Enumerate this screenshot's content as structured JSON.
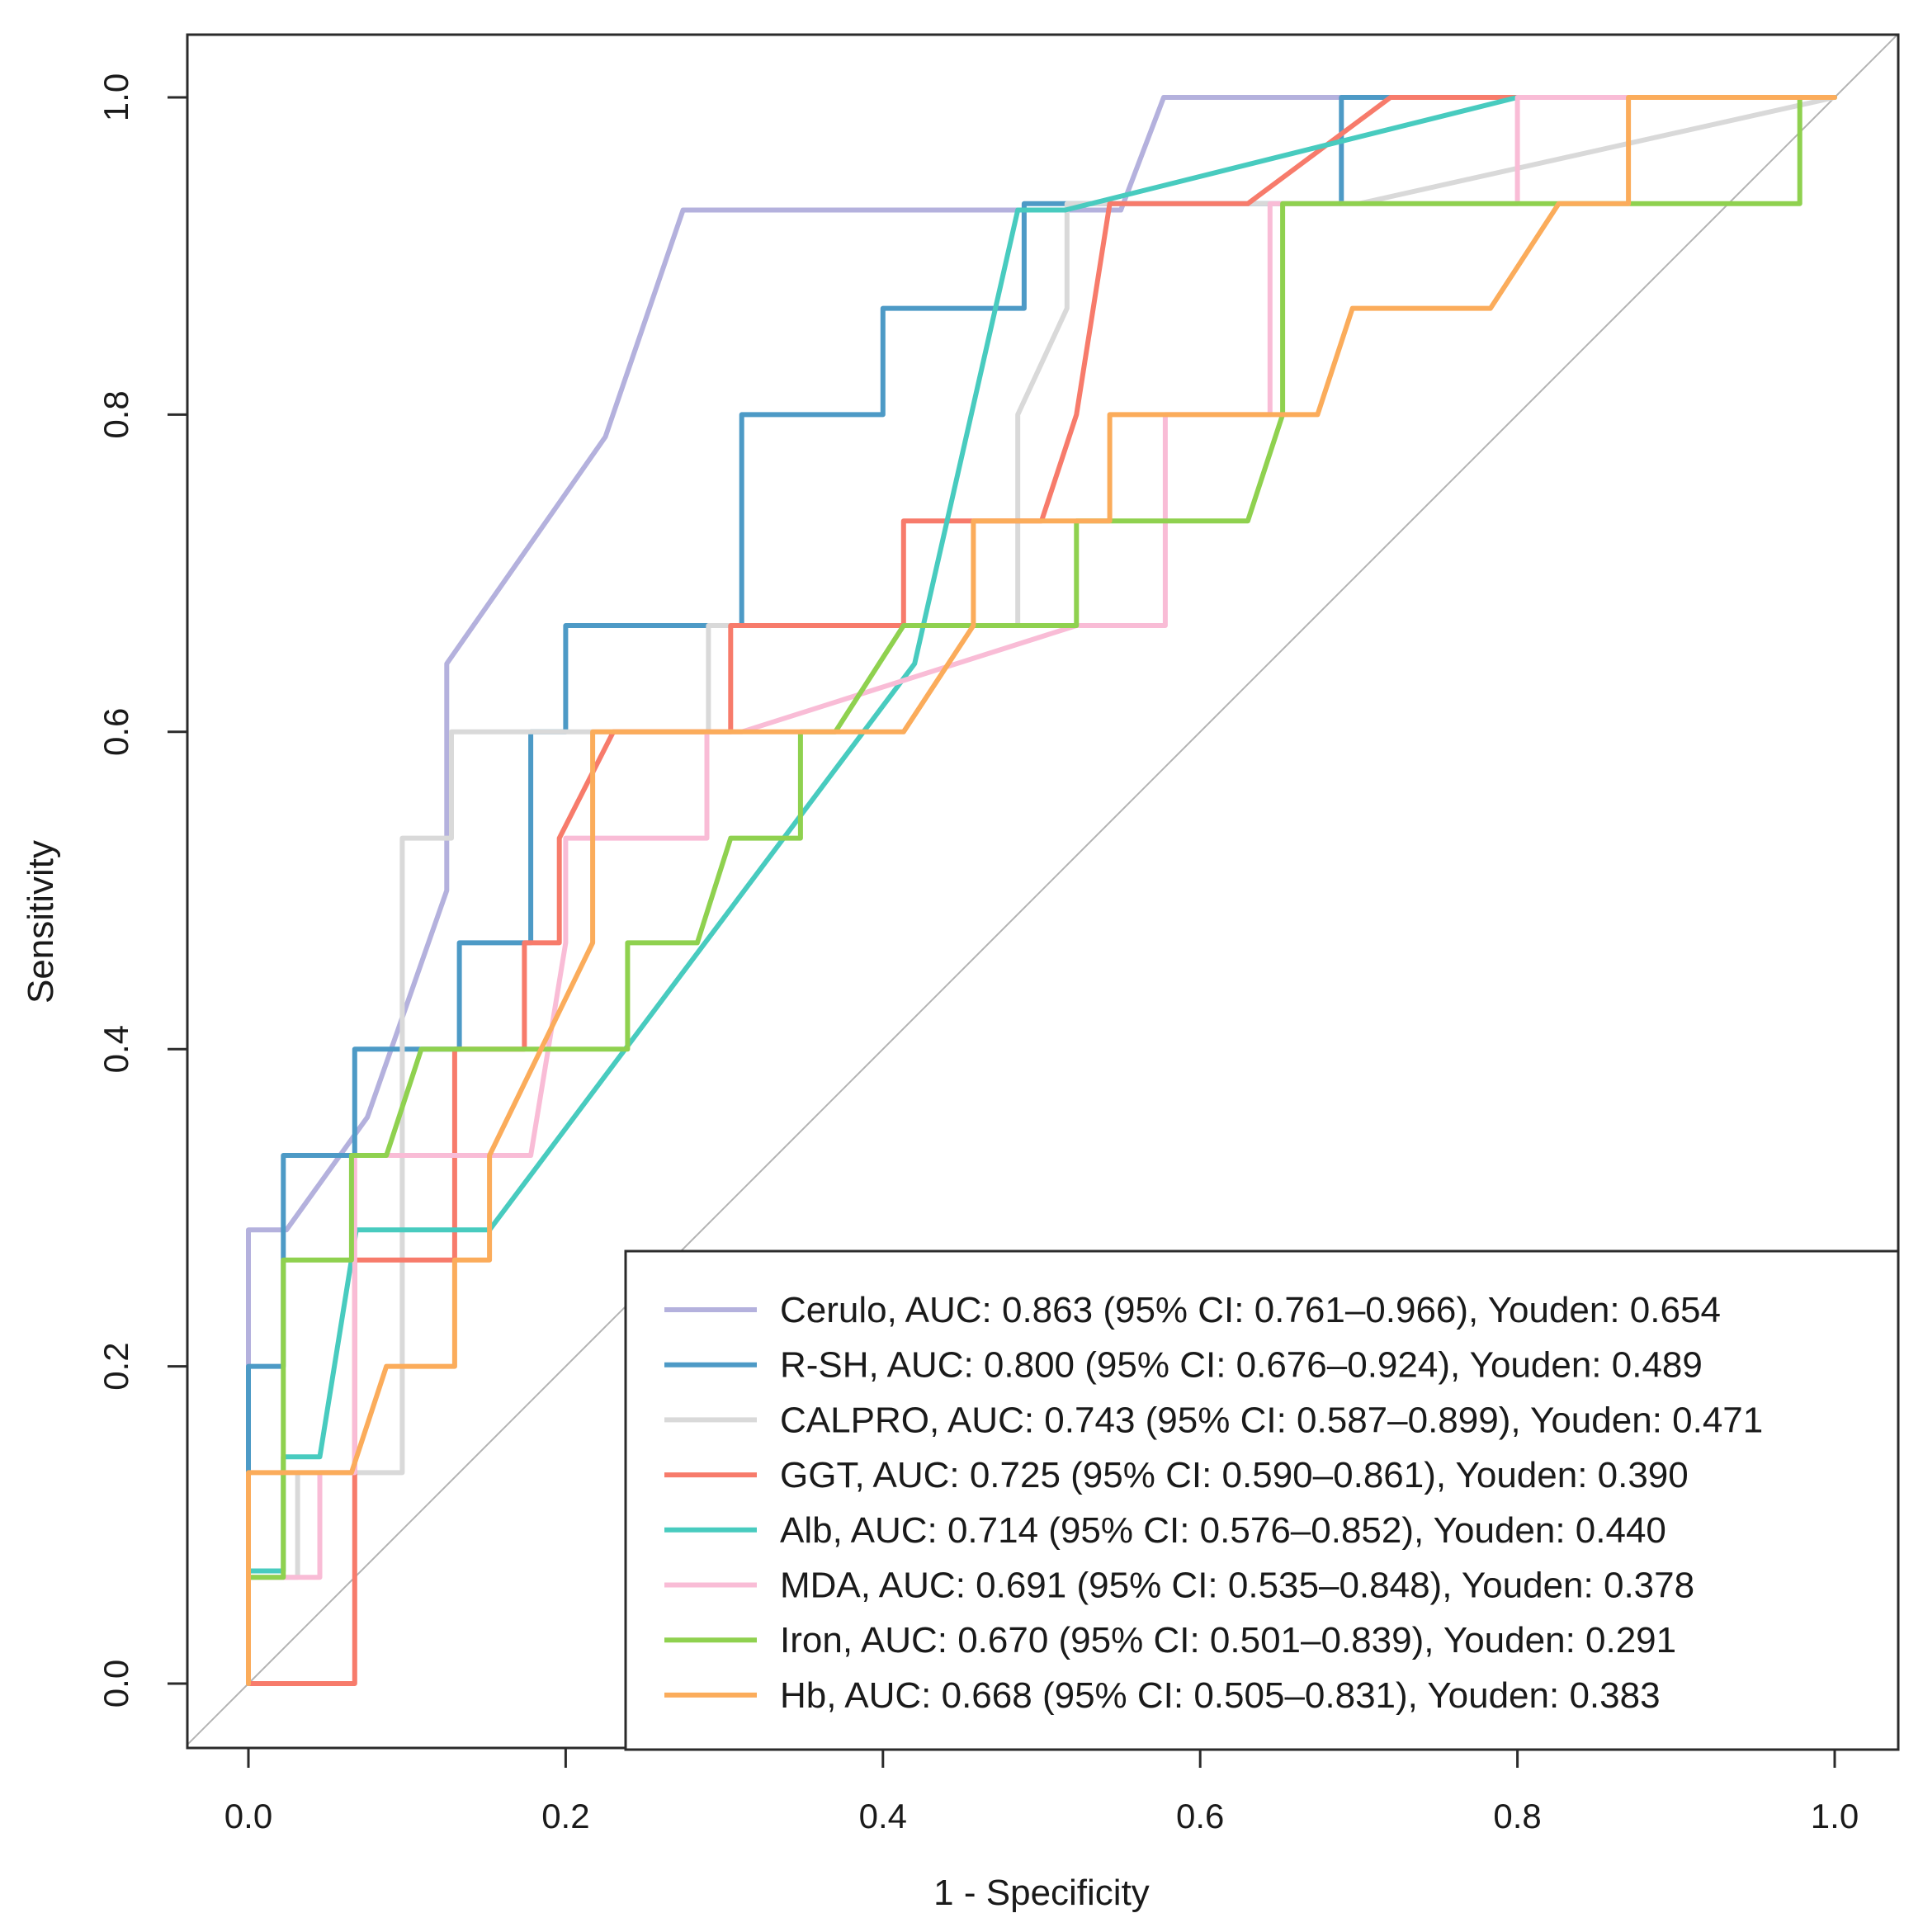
{
  "chart_data": {
    "type": "line",
    "title": "",
    "xlabel": "1 - Specificity",
    "ylabel": "Sensitivity",
    "xlim": [
      0.0,
      1.0
    ],
    "ylim": [
      0.0,
      1.0
    ],
    "grid": false,
    "diagonal_reference": true,
    "legend_position": "bottom-right",
    "xticks": [
      "0.0",
      "0.2",
      "0.4",
      "0.6",
      "0.8",
      "1.0"
    ],
    "yticks": [
      "0.0",
      "0.2",
      "0.4",
      "0.6",
      "0.8",
      "1.0"
    ],
    "series": [
      {
        "name": "Cerulo",
        "label": "Cerulo, AUC: 0.863 (95% CI: 0.761–0.966), Youden: 0.654",
        "auc": 0.863,
        "ci": [
          0.761,
          0.966
        ],
        "youden": 0.654,
        "color": "#b4b1dd",
        "x": [
          0,
          0,
          0.024,
          0.075,
          0.125,
          0.125,
          0.225,
          0.274,
          0.5,
          0.55,
          0.577,
          1
        ],
        "y": [
          0,
          0.286,
          0.286,
          0.357,
          0.5,
          0.643,
          0.786,
          0.929,
          0.929,
          0.929,
          1,
          1
        ]
      },
      {
        "name": "R-SH",
        "label": "R-SH, AUC: 0.800 (95% CI: 0.676–0.924), Youden: 0.489",
        "auc": 0.8,
        "ci": [
          0.676,
          0.924
        ],
        "youden": 0.489,
        "color": "#4d9ac6",
        "x": [
          0,
          0,
          0.022,
          0.022,
          0.067,
          0.067,
          0.1,
          0.133,
          0.133,
          0.178,
          0.178,
          0.2,
          0.2,
          0.311,
          0.311,
          0.4,
          0.4,
          0.489,
          0.489,
          0.689,
          0.689,
          0.8,
          1
        ],
        "y": [
          0,
          0.2,
          0.2,
          0.333,
          0.333,
          0.4,
          0.4,
          0.4,
          0.467,
          0.467,
          0.6,
          0.6,
          0.667,
          0.667,
          0.8,
          0.8,
          0.867,
          0.867,
          0.933,
          0.933,
          1,
          1,
          1
        ]
      },
      {
        "name": "CALPRO",
        "label": "CALPRO, AUC: 0.743 (95% CI: 0.587–0.899), Youden: 0.471",
        "auc": 0.743,
        "ci": [
          0.587,
          0.899
        ],
        "youden": 0.471,
        "color": "#d9d9d9",
        "x": [
          0,
          0,
          0.031,
          0.031,
          0.097,
          0.097,
          0.128,
          0.128,
          0.29,
          0.29,
          0.485,
          0.485,
          0.516,
          0.516,
          0.7,
          1
        ],
        "y": [
          0,
          0.067,
          0.067,
          0.133,
          0.133,
          0.533,
          0.533,
          0.6,
          0.6,
          0.667,
          0.667,
          0.8,
          0.867,
          0.933,
          0.933,
          1
        ]
      },
      {
        "name": "GGT",
        "label": "GGT, AUC: 0.725 (95% CI: 0.590–0.861), Youden: 0.390",
        "auc": 0.725,
        "ci": [
          0.59,
          0.861
        ],
        "youden": 0.39,
        "color": "#f77b6b",
        "x": [
          0,
          0.067,
          0.067,
          0.087,
          0.087,
          0.13,
          0.13,
          0.174,
          0.174,
          0.196,
          0.196,
          0.23,
          0.304,
          0.304,
          0.413,
          0.413,
          0.5,
          0.522,
          0.543,
          0.63,
          0.72,
          1
        ],
        "y": [
          0,
          0,
          0.267,
          0.267,
          0.267,
          0.267,
          0.4,
          0.4,
          0.467,
          0.467,
          0.533,
          0.6,
          0.6,
          0.667,
          0.667,
          0.733,
          0.733,
          0.8,
          0.933,
          0.933,
          1,
          1
        ]
      },
      {
        "name": "Alb",
        "label": "Alb, AUC: 0.714 (95% CI: 0.576–0.852), Youden: 0.440",
        "auc": 0.714,
        "ci": [
          0.576,
          0.852
        ],
        "youden": 0.44,
        "color": "#48cbbf",
        "x": [
          0,
          0,
          0.022,
          0.022,
          0.045,
          0.068,
          0.068,
          0.152,
          0.42,
          0.485,
          0.515,
          0.8,
          1
        ],
        "y": [
          0,
          0.071,
          0.071,
          0.143,
          0.143,
          0.286,
          0.286,
          0.286,
          0.643,
          0.929,
          0.929,
          1,
          1
        ]
      },
      {
        "name": "MDA",
        "label": "MDA, AUC: 0.691 (95% CI: 0.535–0.848), Youden: 0.378",
        "auc": 0.691,
        "ci": [
          0.535,
          0.848
        ],
        "youden": 0.378,
        "color": "#f9bcd6",
        "x": [
          0,
          0,
          0.022,
          0.045,
          0.045,
          0.067,
          0.067,
          0.178,
          0.2,
          0.2,
          0.289,
          0.289,
          0.311,
          0.522,
          0.578,
          0.578,
          0.644,
          0.644,
          0.8,
          0.8,
          1
        ],
        "y": [
          0,
          0.067,
          0.067,
          0.067,
          0.133,
          0.133,
          0.333,
          0.333,
          0.467,
          0.533,
          0.533,
          0.6,
          0.6,
          0.667,
          0.667,
          0.8,
          0.8,
          0.933,
          0.933,
          1,
          1
        ]
      },
      {
        "name": "Iron",
        "label": "Iron, AUC: 0.670 (95% CI: 0.501–0.839), Youden: 0.291",
        "auc": 0.67,
        "ci": [
          0.501,
          0.839
        ],
        "youden": 0.291,
        "color": "#8fd14f",
        "x": [
          0,
          0.022,
          0.022,
          0.065,
          0.065,
          0.087,
          0.109,
          0.239,
          0.239,
          0.283,
          0.304,
          0.348,
          0.348,
          0.37,
          0.413,
          0.522,
          0.522,
          0.63,
          0.652,
          0.652,
          0.826,
          0.978,
          0.978,
          1
        ],
        "y": [
          0.067,
          0.067,
          0.267,
          0.267,
          0.333,
          0.333,
          0.4,
          0.4,
          0.467,
          0.467,
          0.533,
          0.533,
          0.6,
          0.6,
          0.667,
          0.667,
          0.733,
          0.733,
          0.8,
          0.933,
          0.933,
          0.933,
          1,
          1
        ]
      },
      {
        "name": "Hb",
        "label": "Hb, AUC: 0.668 (95% CI: 0.505–0.831), Youden: 0.383",
        "auc": 0.668,
        "ci": [
          0.505,
          0.831
        ],
        "youden": 0.383,
        "color": "#fbac5b",
        "x": [
          0,
          0,
          0.03,
          0.03,
          0.065,
          0.087,
          0.087,
          0.13,
          0.13,
          0.152,
          0.152,
          0.217,
          0.217,
          0.283,
          0.283,
          0.413,
          0.457,
          0.457,
          0.543,
          0.543,
          0.674,
          0.696,
          0.783,
          0.826,
          0.87,
          0.87,
          1
        ],
        "y": [
          0,
          0.133,
          0.133,
          0.133,
          0.133,
          0.2,
          0.2,
          0.2,
          0.267,
          0.267,
          0.333,
          0.467,
          0.6,
          0.6,
          0.6,
          0.6,
          0.667,
          0.733,
          0.733,
          0.8,
          0.8,
          0.867,
          0.867,
          0.933,
          0.933,
          1,
          1
        ]
      }
    ]
  }
}
